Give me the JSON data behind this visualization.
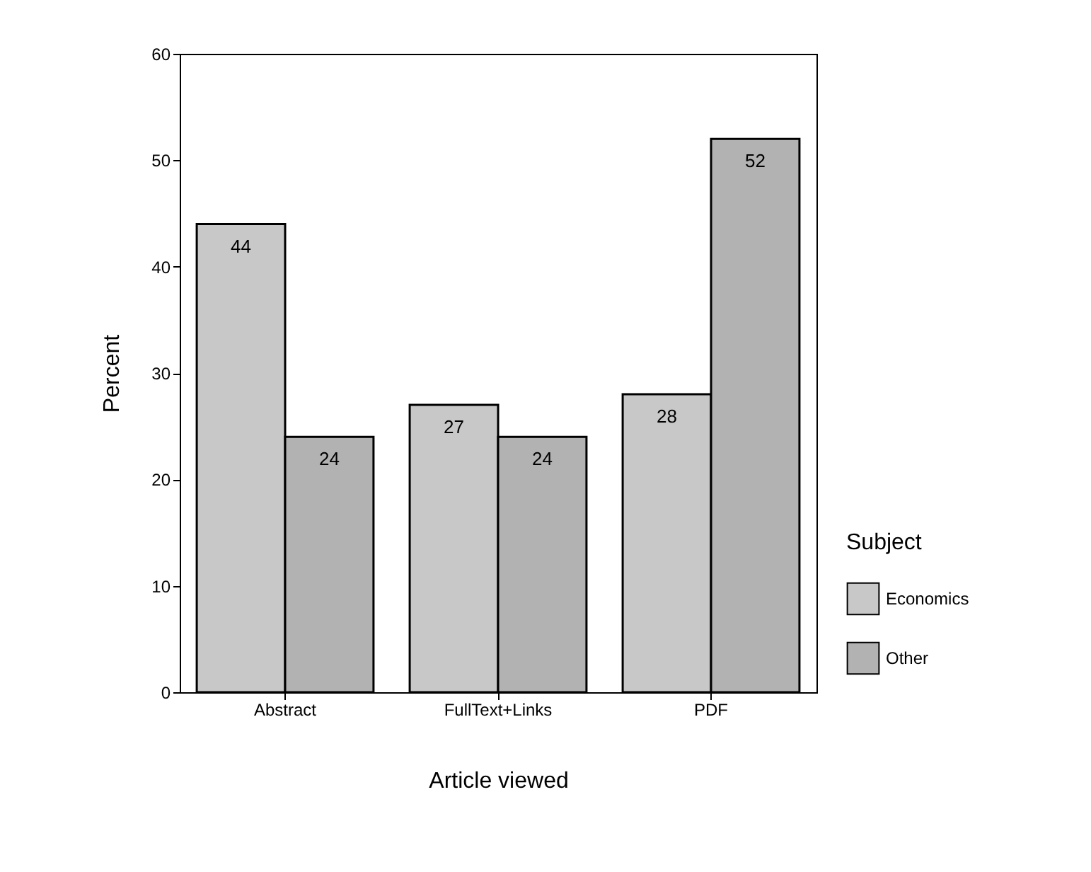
{
  "chart_data": {
    "type": "bar",
    "xlabel": "Article viewed",
    "ylabel": "Percent",
    "legend_title": "Subject",
    "categories": [
      "Abstract",
      "FullText+Links",
      "PDF"
    ],
    "series": [
      {
        "name": "Economics",
        "color": "#c8c8c8",
        "values": [
          44,
          27,
          28
        ]
      },
      {
        "name": "Other",
        "color": "#b2b2b2",
        "values": [
          24,
          24,
          52
        ]
      }
    ],
    "ylim": [
      0,
      60
    ],
    "yticks": [
      0,
      10,
      20,
      30,
      40,
      50,
      60
    ],
    "grid": false,
    "legend": "right",
    "data_labels": true
  }
}
